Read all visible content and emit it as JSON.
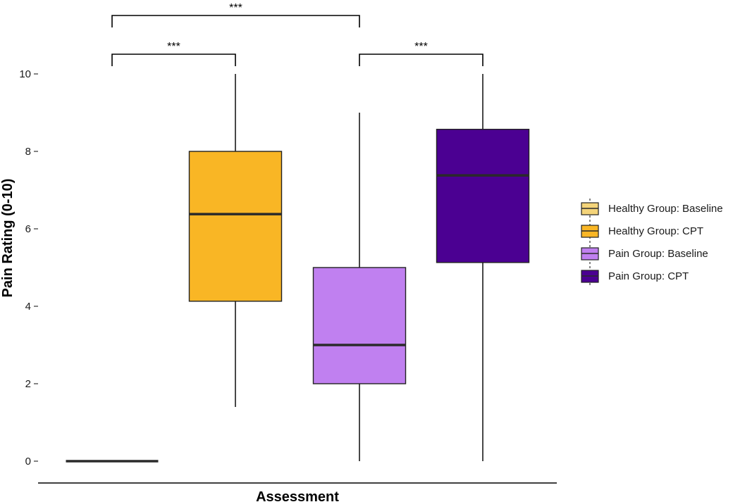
{
  "chart_data": {
    "type": "box",
    "xlabel": "Assessment",
    "ylabel": "Pain Rating (0-10)",
    "ylim": [
      0,
      10
    ],
    "yticks": [
      "0",
      "2",
      "4",
      "6",
      "8",
      "10"
    ],
    "grid": false,
    "legend_position": "right",
    "series": [
      {
        "name": "Healthy Group: Baseline",
        "color": "#f4d47a",
        "min": 0,
        "q1": 0,
        "median": 0,
        "q3": 0,
        "max": 0
      },
      {
        "name": "Healthy Group: CPT",
        "color": "#f9b625",
        "min": 1.4,
        "q1": 4.13,
        "median": 6.38,
        "q3": 8.0,
        "max": 10
      },
      {
        "name": "Pain Group: Baseline",
        "color": "#c080f0",
        "min": 0,
        "q1": 2.0,
        "median": 3.0,
        "q3": 5.0,
        "max": 9.0
      },
      {
        "name": "Pain Group: CPT",
        "color": "#4b0092",
        "min": 0,
        "q1": 5.13,
        "median": 7.38,
        "q3": 8.57,
        "max": 10
      }
    ],
    "significance": [
      {
        "from": 0,
        "to": 1,
        "label": "***",
        "level": 1
      },
      {
        "from": 2,
        "to": 3,
        "label": "***",
        "level": 1
      },
      {
        "from": 0,
        "to": 2,
        "label": "***",
        "level": 2
      }
    ]
  }
}
